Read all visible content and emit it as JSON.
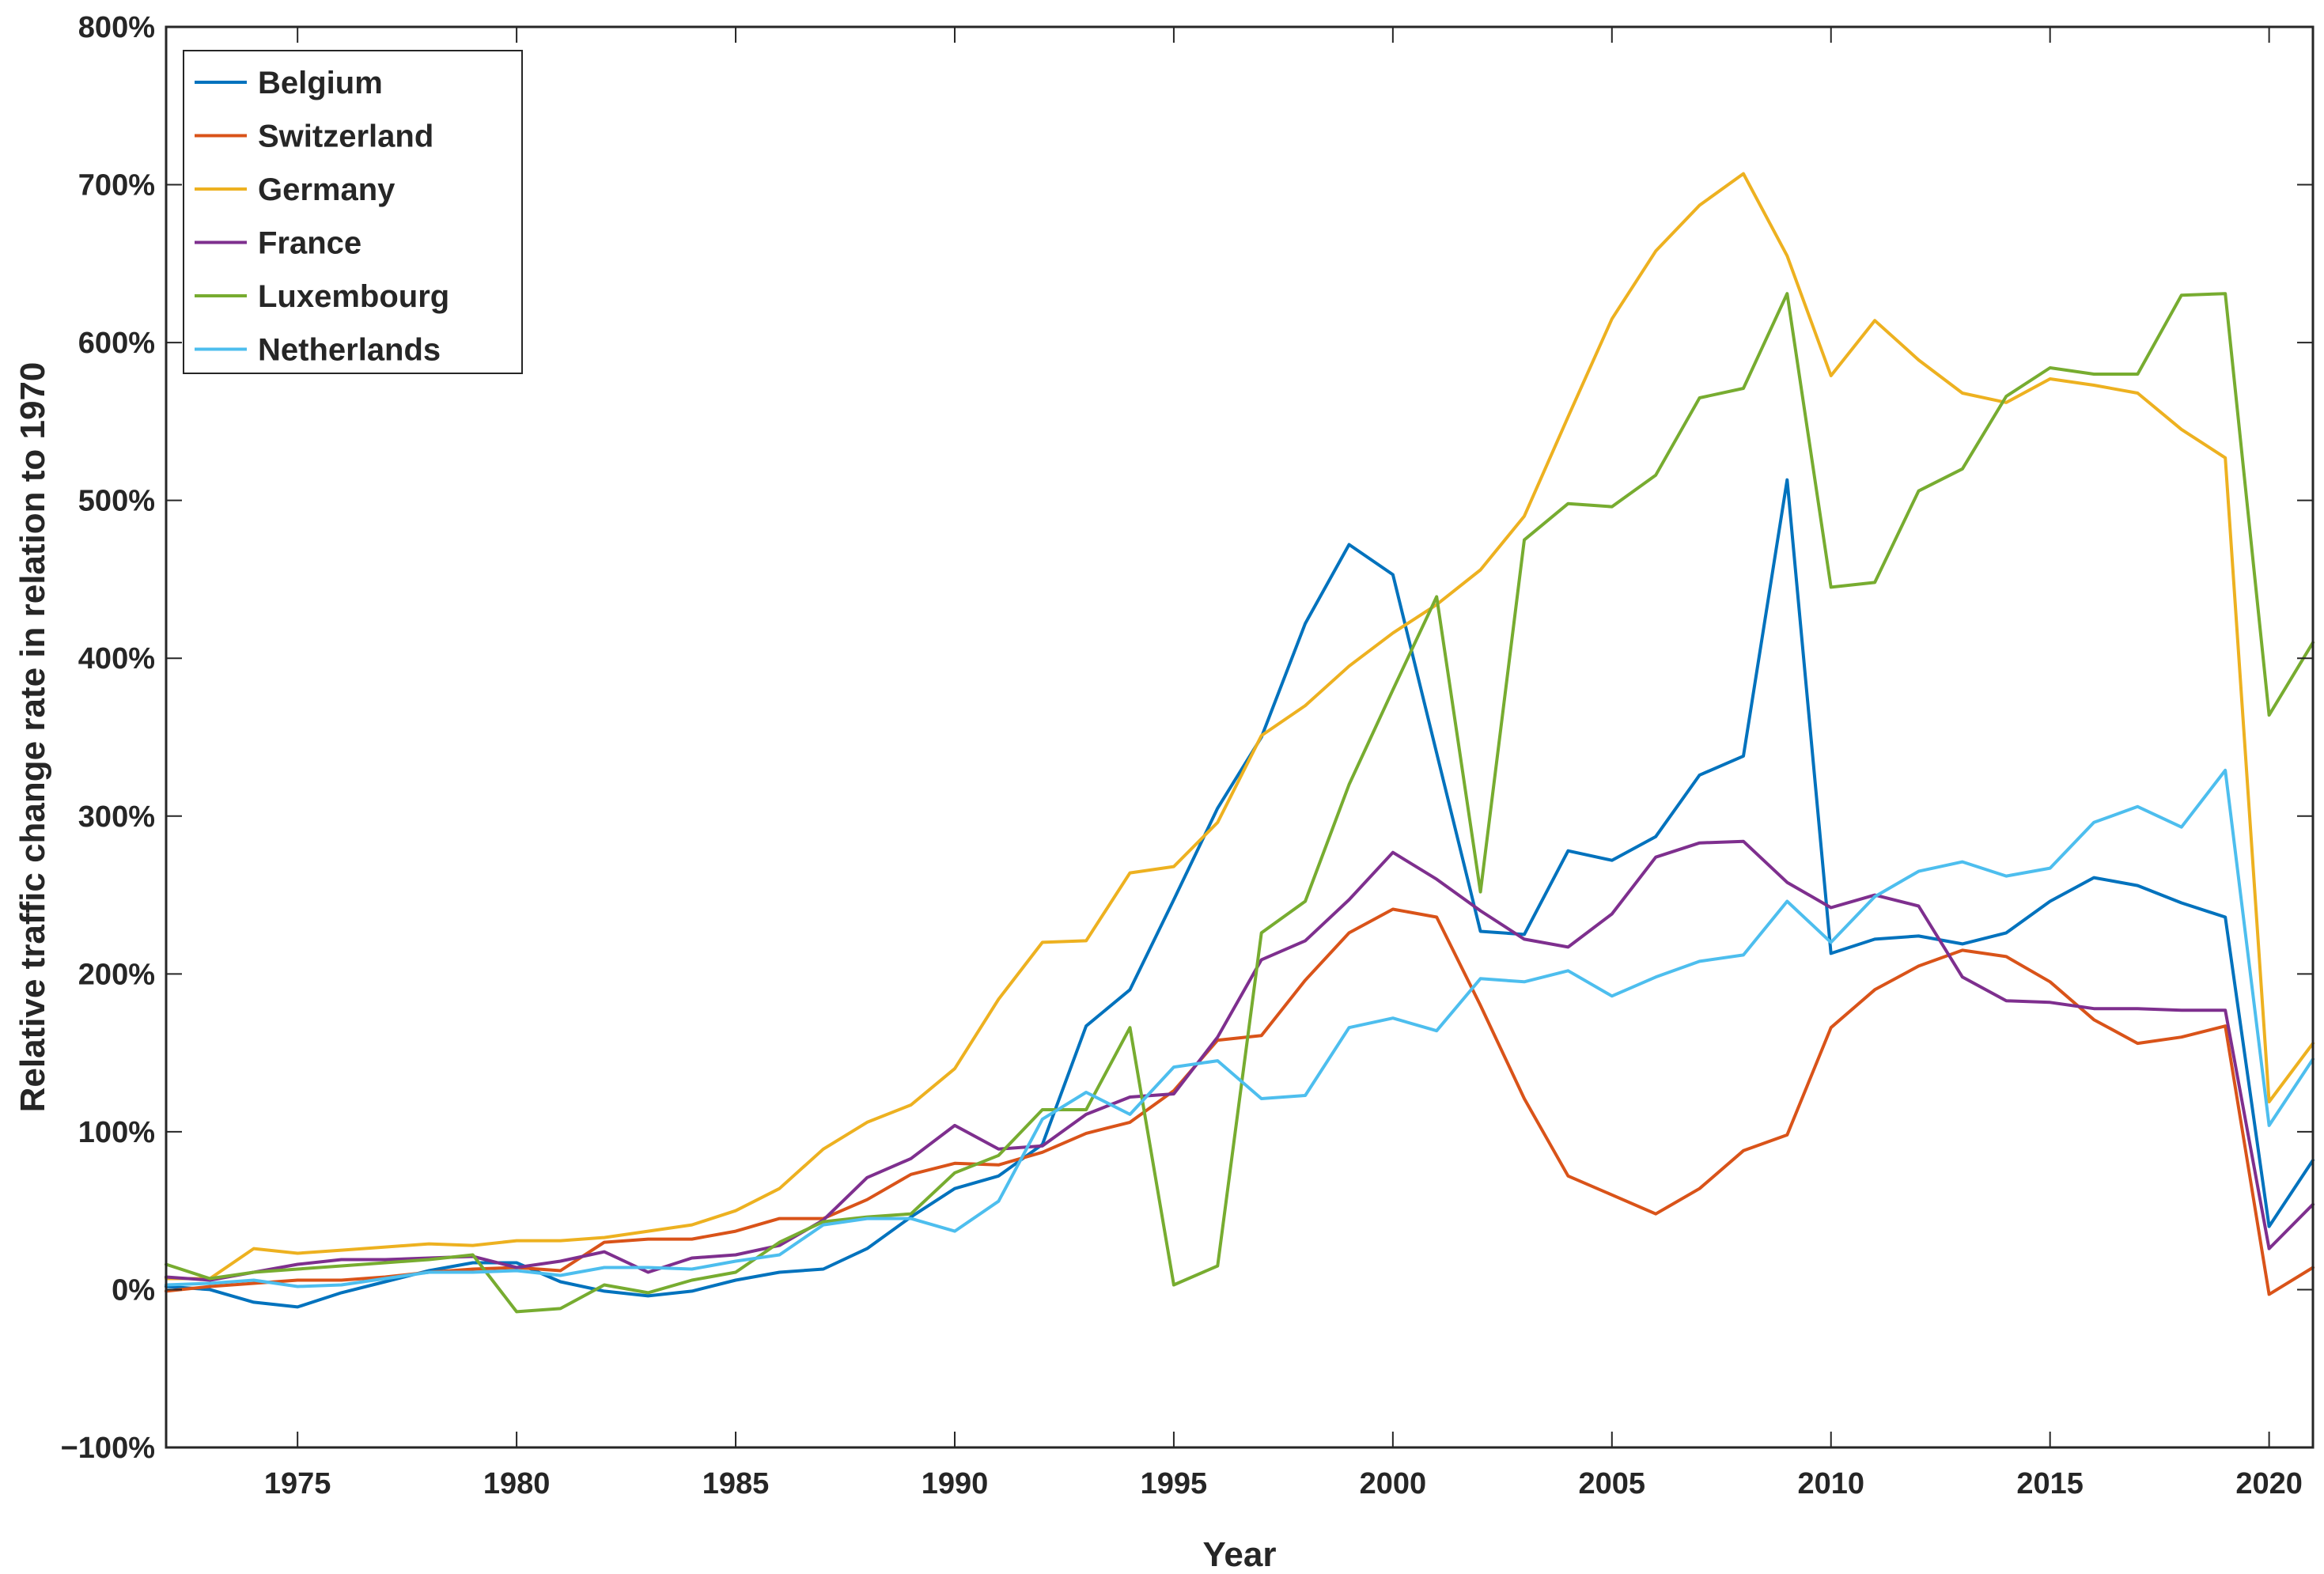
{
  "chart_data": {
    "type": "line",
    "title": "",
    "xlabel": "Year",
    "ylabel": "Relative traffic change rate in relation to 1970",
    "xlim": [
      1972,
      2021
    ],
    "ylim": [
      -100,
      800
    ],
    "xticks": [
      1975,
      1980,
      1985,
      1990,
      1995,
      2000,
      2005,
      2010,
      2015,
      2020
    ],
    "yticks": [
      -100,
      0,
      100,
      200,
      300,
      400,
      500,
      600,
      700,
      800
    ],
    "ytick_labels": [
      "−100%",
      "0%",
      "100%",
      "200%",
      "300%",
      "400%",
      "500%",
      "600%",
      "700%",
      "800%"
    ],
    "grid": false,
    "legend_position": "top-left",
    "x": [
      1972,
      1973,
      1974,
      1975,
      1976,
      1977,
      1978,
      1979,
      1980,
      1981,
      1982,
      1983,
      1984,
      1985,
      1986,
      1987,
      1988,
      1989,
      1990,
      1991,
      1992,
      1993,
      1994,
      1995,
      1996,
      1997,
      1998,
      1999,
      2000,
      2001,
      2002,
      2003,
      2004,
      2005,
      2006,
      2007,
      2008,
      2009,
      2010,
      2011,
      2012,
      2013,
      2014,
      2015,
      2016,
      2017,
      2018,
      2019,
      2020,
      2021
    ],
    "series": [
      {
        "name": "Belgium",
        "color": "#0072BD",
        "values": [
          2,
          0,
          -8,
          -11,
          -2,
          5,
          12,
          17,
          17,
          5,
          -1,
          -4,
          -1,
          6,
          11,
          13,
          26,
          46,
          64,
          72,
          92,
          167,
          190,
          247,
          305,
          350,
          422,
          472,
          453,
          340,
          227,
          225,
          278,
          272,
          287,
          326,
          338,
          513,
          213,
          222,
          224,
          219,
          226,
          246,
          261,
          256,
          245,
          236,
          40,
          82
        ]
      },
      {
        "name": "Switzerland",
        "color": "#D95319",
        "values": [
          -1,
          2,
          4,
          6,
          6,
          8,
          11,
          13,
          14,
          12,
          30,
          32,
          32,
          37,
          45,
          45,
          57,
          73,
          80,
          79,
          87,
          99,
          106,
          126,
          158,
          161,
          196,
          226,
          241,
          236,
          180,
          121,
          72,
          60,
          48,
          64,
          88,
          98,
          166,
          190,
          205,
          215,
          211,
          195,
          171,
          156,
          160,
          167,
          -3,
          14
        ]
      },
      {
        "name": "Germany",
        "color": "#EDB120",
        "values": [
          7,
          7,
          26,
          23,
          25,
          27,
          29,
          28,
          31,
          31,
          33,
          37,
          41,
          50,
          64,
          89,
          106,
          117,
          140,
          184,
          220,
          221,
          264,
          268,
          296,
          351,
          370,
          395,
          416,
          434,
          456,
          490,
          553,
          615,
          658,
          687,
          707,
          655,
          579,
          614,
          589,
          568,
          562,
          577,
          573,
          568,
          545,
          527,
          119,
          156
        ]
      },
      {
        "name": "France",
        "color": "#7E2F8E",
        "values": [
          8,
          6,
          11,
          16,
          19,
          19,
          20,
          21,
          14,
          18,
          24,
          11,
          20,
          22,
          28,
          44,
          71,
          83,
          104,
          89,
          91,
          111,
          122,
          124,
          160,
          209,
          221,
          247,
          277,
          260,
          240,
          222,
          217,
          238,
          274,
          283,
          284,
          258,
          242,
          250,
          243,
          198,
          183,
          182,
          178,
          178,
          177,
          177,
          26,
          54
        ]
      },
      {
        "name": "Luxembourg",
        "color": "#77AC30",
        "values": [
          16,
          7,
          11,
          13,
          15,
          17,
          19,
          22,
          -14,
          -12,
          3,
          -2,
          6,
          11,
          30,
          43,
          46,
          48,
          74,
          85,
          114,
          114,
          166,
          3,
          15,
          226,
          246,
          320,
          380,
          439,
          252,
          475,
          498,
          496,
          516,
          565,
          571,
          631,
          445,
          448,
          506,
          520,
          566,
          584,
          580,
          580,
          630,
          631,
          364,
          410
        ]
      },
      {
        "name": "Netherlands",
        "color": "#4DBEEE",
        "values": [
          3,
          4,
          6,
          2,
          3,
          7,
          11,
          11,
          12,
          9,
          14,
          14,
          13,
          18,
          22,
          41,
          45,
          45,
          37,
          56,
          108,
          125,
          111,
          141,
          145,
          121,
          123,
          166,
          172,
          164,
          197,
          195,
          202,
          186,
          198,
          208,
          212,
          246,
          220,
          249,
          265,
          271,
          262,
          267,
          296,
          306,
          293,
          329,
          104,
          146
        ]
      }
    ]
  }
}
